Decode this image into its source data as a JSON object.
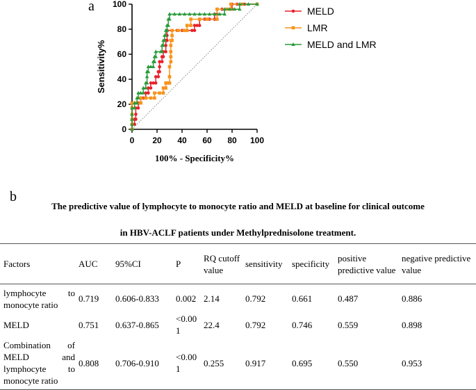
{
  "panel_a_label": "a",
  "panel_b_label": "b",
  "chart_data": {
    "type": "line",
    "xlabel": "100% - Specificity%",
    "ylabel": "Sensitivity%",
    "xlim": [
      0,
      100
    ],
    "ylim": [
      0,
      100
    ],
    "xticks": [
      "0",
      "20",
      "40",
      "60",
      "80",
      "100"
    ],
    "yticks": [
      "0",
      "20",
      "40",
      "60",
      "80",
      "100"
    ],
    "reference_line": "diagonal dotted",
    "legend_position": "right",
    "series": [
      {
        "name": "MELD",
        "color": "#e8202a",
        "marker": "circle",
        "points": [
          [
            0,
            0
          ],
          [
            0,
            4
          ],
          [
            2,
            4
          ],
          [
            2,
            8
          ],
          [
            3,
            8
          ],
          [
            3,
            12
          ],
          [
            3,
            17
          ],
          [
            5,
            17
          ],
          [
            5,
            21
          ],
          [
            7,
            21
          ],
          [
            7,
            25
          ],
          [
            9,
            25
          ],
          [
            11,
            25
          ],
          [
            11,
            29
          ],
          [
            13,
            29
          ],
          [
            13,
            33
          ],
          [
            15,
            33
          ],
          [
            15,
            37
          ],
          [
            17,
            37
          ],
          [
            19,
            37
          ],
          [
            19,
            42
          ],
          [
            21,
            42
          ],
          [
            21,
            46
          ],
          [
            22,
            46
          ],
          [
            22,
            50
          ],
          [
            22,
            54
          ],
          [
            24,
            54
          ],
          [
            24,
            58
          ],
          [
            25,
            58
          ],
          [
            25,
            62
          ],
          [
            27,
            62
          ],
          [
            27,
            67
          ],
          [
            27,
            71
          ],
          [
            28,
            71
          ],
          [
            28,
            75
          ],
          [
            28,
            79
          ],
          [
            32,
            79
          ],
          [
            36,
            79
          ],
          [
            40,
            79
          ],
          [
            44,
            79
          ],
          [
            48,
            79
          ],
          [
            50,
            79
          ],
          [
            50,
            83
          ],
          [
            52,
            83
          ],
          [
            54,
            83
          ],
          [
            54,
            88
          ],
          [
            58,
            88
          ],
          [
            62,
            88
          ],
          [
            66,
            88
          ],
          [
            66,
            92
          ],
          [
            68,
            92
          ],
          [
            68,
            96
          ],
          [
            72,
            96
          ],
          [
            76,
            96
          ],
          [
            80,
            96
          ],
          [
            80,
            100
          ],
          [
            84,
            100
          ],
          [
            90,
            100
          ],
          [
            100,
            100
          ]
        ]
      },
      {
        "name": "LMR",
        "color": "#f7941d",
        "marker": "square",
        "points": [
          [
            0,
            0
          ],
          [
            0,
            4
          ],
          [
            0,
            8
          ],
          [
            0,
            12
          ],
          [
            0,
            17
          ],
          [
            0,
            21
          ],
          [
            3,
            21
          ],
          [
            7,
            21
          ],
          [
            7,
            25
          ],
          [
            11,
            25
          ],
          [
            15,
            25
          ],
          [
            18,
            25
          ],
          [
            18,
            29
          ],
          [
            22,
            29
          ],
          [
            25,
            29
          ],
          [
            25,
            33
          ],
          [
            27,
            33
          ],
          [
            27,
            37
          ],
          [
            29,
            37
          ],
          [
            30,
            37
          ],
          [
            30,
            42
          ],
          [
            30,
            50
          ],
          [
            31,
            54
          ],
          [
            31,
            58
          ],
          [
            31,
            62
          ],
          [
            31,
            67
          ],
          [
            31,
            71
          ],
          [
            32,
            71
          ],
          [
            32,
            75
          ],
          [
            32,
            79
          ],
          [
            37,
            79
          ],
          [
            42,
            79
          ],
          [
            44,
            79
          ],
          [
            44,
            83
          ],
          [
            47,
            83
          ],
          [
            47,
            88
          ],
          [
            54,
            88
          ],
          [
            60,
            88
          ],
          [
            68,
            88
          ],
          [
            68,
            96
          ],
          [
            76,
            96
          ],
          [
            79,
            96
          ],
          [
            79,
            100
          ],
          [
            88,
            100
          ],
          [
            100,
            100
          ]
        ]
      },
      {
        "name": "MELD and LMR",
        "color": "#2a9a3a",
        "marker": "triangle",
        "points": [
          [
            0,
            0
          ],
          [
            0,
            4
          ],
          [
            0,
            8
          ],
          [
            0,
            12
          ],
          [
            0,
            17
          ],
          [
            2,
            17
          ],
          [
            2,
            21
          ],
          [
            4,
            21
          ],
          [
            4,
            25
          ],
          [
            5,
            25
          ],
          [
            5,
            29
          ],
          [
            7,
            29
          ],
          [
            9,
            29
          ],
          [
            9,
            33
          ],
          [
            11,
            33
          ],
          [
            11,
            37
          ],
          [
            12,
            37
          ],
          [
            12,
            42
          ],
          [
            12,
            46
          ],
          [
            13,
            46
          ],
          [
            13,
            50
          ],
          [
            15,
            50
          ],
          [
            17,
            50
          ],
          [
            17,
            54
          ],
          [
            18,
            54
          ],
          [
            18,
            58
          ],
          [
            19,
            58
          ],
          [
            19,
            62
          ],
          [
            23,
            62
          ],
          [
            24,
            62
          ],
          [
            24,
            67
          ],
          [
            25,
            67
          ],
          [
            25,
            71
          ],
          [
            26,
            71
          ],
          [
            26,
            75
          ],
          [
            27,
            75
          ],
          [
            27,
            79
          ],
          [
            28,
            79
          ],
          [
            28,
            83
          ],
          [
            29,
            83
          ],
          [
            29,
            88
          ],
          [
            30,
            88
          ],
          [
            30,
            92
          ],
          [
            34,
            92
          ],
          [
            38,
            92
          ],
          [
            42,
            92
          ],
          [
            46,
            92
          ],
          [
            50,
            92
          ],
          [
            54,
            92
          ],
          [
            58,
            92
          ],
          [
            62,
            92
          ],
          [
            66,
            92
          ],
          [
            70,
            92
          ],
          [
            74,
            92
          ],
          [
            74,
            96
          ],
          [
            78,
            96
          ],
          [
            82,
            96
          ],
          [
            86,
            96
          ],
          [
            86,
            100
          ],
          [
            93,
            100
          ],
          [
            100,
            100
          ]
        ]
      }
    ]
  },
  "table": {
    "title_line1": "The predictive value of lymphocyte to monocyte ratio and MELD at baseline for clinical outcome",
    "title_line2": "in HBV-ACLF patients under Methylprednisolone treatment.",
    "headers": [
      "Factors",
      "AUC",
      "95%CI",
      "P",
      "RQ cutoff value",
      "sensitivity",
      "specificity",
      "positive predictive value",
      "negative predictive value"
    ],
    "rows": [
      [
        "lymphocyte to monocyte ratio",
        "0.719",
        "0.606-0.833",
        "0.002",
        "2.14",
        "0.792",
        "0.661",
        "0.487",
        "0.886"
      ],
      [
        "MELD",
        "0.751",
        "0.637-0.865",
        "<0.001",
        "22.4",
        "0.792",
        "0.746",
        "0.559",
        "0.898"
      ],
      [
        "Combination of MELD and lymphocyte to monocyte ratio",
        "0.808",
        "0.706-0.910",
        "<0.001",
        "0.255",
        "0.917",
        "0.695",
        "0.550",
        "0.953"
      ]
    ]
  }
}
